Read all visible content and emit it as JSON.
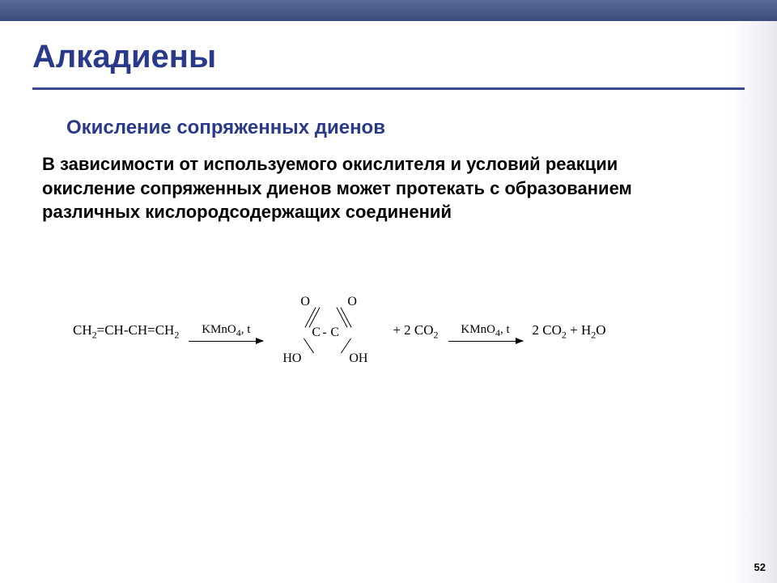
{
  "title": "Алкадиены",
  "subtitle": "Окисление сопряженных диенов",
  "body": "В зависимости от используемого окислителя и условий реакции окисление сопряженных диенов может протекать с образованием различных кислородсодержащих соединений",
  "reaction": {
    "reactant": {
      "ch2a": "CH",
      "s1": "2",
      "eq": "=CH-CH=CH",
      "s2": "2"
    },
    "arrow1_label_a": "KMnO",
    "arrow1_label_a_sub": "4",
    "arrow1_label_b": ", t",
    "oxalic": {
      "O_tl": "O",
      "O_tr": "O",
      "C": "C",
      "dash": " - ",
      "HO": "HO",
      "OH": "OH"
    },
    "mid_products": {
      "plus": " +  2 CO",
      "sub": "2"
    },
    "arrow2_label_a": "KMnO",
    "arrow2_label_a_sub": "4",
    "arrow2_label_b": ", t",
    "final": {
      "a": "2 CO",
      "a_sub": "2",
      "plus": "  +  H",
      "b_sub": "2",
      "b": "O"
    }
  },
  "page": "52",
  "colors": {
    "title": "#2a3a8a",
    "rule": "#3a4a8a",
    "topbar_from": "#5a6a9a",
    "topbar_to": "#3a4a7a"
  }
}
